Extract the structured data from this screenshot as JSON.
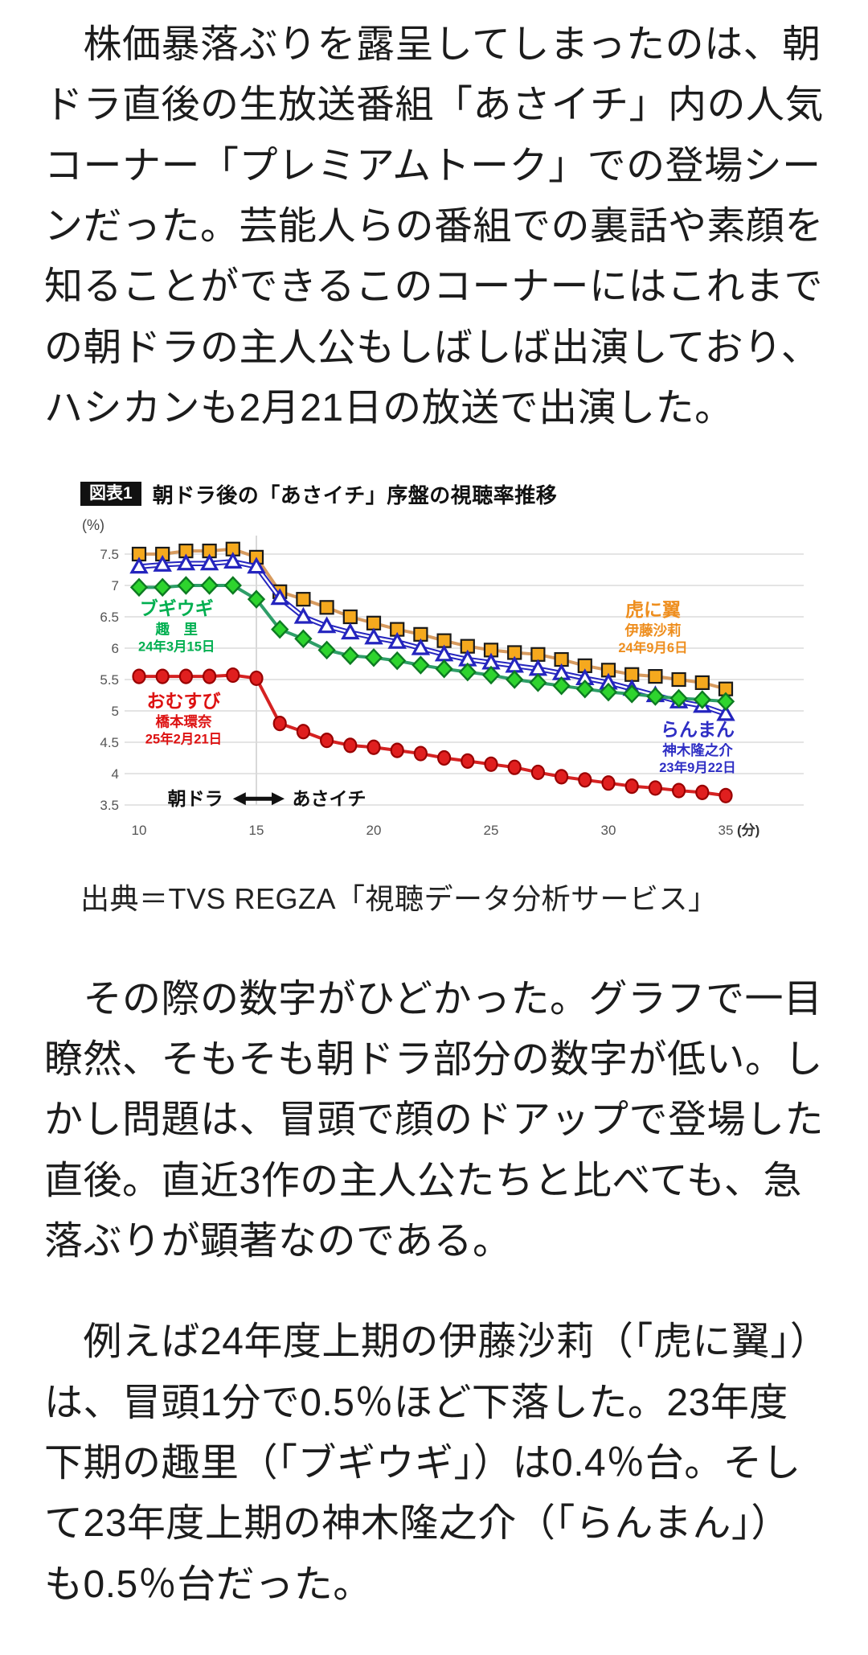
{
  "article": {
    "paragraph1": "　株価暴落ぶりを露呈してしまったのは、朝ドラ直後の生放送番組「あさイチ」内の人気コーナー「プレミアムトーク」での登場シーンだった。芸能人らの番組での裏話や素顔を知ることができるこのコーナーにはこれまでの朝ドラの主人公もしばしば出演しており、ハシカンも2月21日の放送で出演した。",
    "paragraph2": "　その際の数字がひどかった。グラフで一目瞭然、そもそも朝ドラ部分の数字が低い。しかし問題は、冒頭で顔のドアップで登場した直後。直近3作の主人公たちと比べても、急落ぶりが顕著なのである。",
    "paragraph3": "　例えば24年度上期の伊藤沙莉（「虎に翼」）は、冒頭1分で0.5％ほど下落した。23年度下期の趣里（「ブギウギ」）は0.4％台。そして23年度上期の神木隆之介（「らんまん」）も0.5％台だった。",
    "source": "出典＝TVS REGZA「視聴データ分析サービス」"
  },
  "chart": {
    "badge": "図表1",
    "title": "朝ドラ後の「あさイチ」序盤の視聴率推移",
    "unit_label": "(%)"
  },
  "chart_data": {
    "type": "line",
    "title": "朝ドラ後の「あさイチ」序盤の視聴率推移",
    "xlabel": "(分)",
    "ylabel": "(%)",
    "x": [
      10,
      11,
      12,
      13,
      14,
      15,
      16,
      17,
      18,
      19,
      20,
      21,
      22,
      23,
      24,
      25,
      26,
      27,
      28,
      29,
      30,
      31,
      32,
      33,
      34,
      35
    ],
    "xticks": [
      10,
      15,
      20,
      25,
      30,
      35
    ],
    "yticks": [
      7.5,
      7,
      6.5,
      6,
      5.5,
      5,
      4.5,
      4,
      3.5
    ],
    "xlim": [
      10,
      35
    ],
    "ylim": [
      3.5,
      7.5
    ],
    "grid": true,
    "boundary_x": 15,
    "grid_color": "#e4e4e4",
    "boundary_color": "#d9d9d9",
    "axis_text_color": "#555555",
    "series": [
      {
        "name": "虎に翼",
        "actor": "伊藤沙莉",
        "date": "24年9月6日",
        "marker": "square",
        "marker_fill": "#f5a91e",
        "marker_stroke": "#1a1a1a",
        "line_color": "#d79b5f",
        "label_color": "#ee8e1e",
        "label_x": 31.9,
        "label_y": 6.51,
        "values": [
          7.5,
          7.5,
          7.55,
          7.55,
          7.58,
          7.45,
          6.9,
          6.78,
          6.65,
          6.5,
          6.4,
          6.3,
          6.22,
          6.12,
          6.03,
          5.97,
          5.93,
          5.9,
          5.82,
          5.72,
          5.65,
          5.58,
          5.55,
          5.5,
          5.45,
          5.35
        ]
      },
      {
        "name": "らんまん",
        "actor": "神木隆之介",
        "date": "23年9月22日",
        "marker": "triangle",
        "marker_fill": "#ffffff",
        "marker_stroke": "#2424be",
        "line_color": "#2424be",
        "label_color": "#2e2ec4",
        "label_x": 33.8,
        "label_y": 4.6,
        "values": [
          7.3,
          7.33,
          7.35,
          7.35,
          7.38,
          7.3,
          6.8,
          6.5,
          6.35,
          6.25,
          6.17,
          6.1,
          6.0,
          5.9,
          5.82,
          5.77,
          5.72,
          5.67,
          5.6,
          5.52,
          5.45,
          5.35,
          5.25,
          5.15,
          5.08,
          4.95
        ]
      },
      {
        "name": "ブギウギ",
        "actor": "趣　里",
        "date": "24年3月15日",
        "marker": "diamond",
        "marker_fill": "#2ed42e",
        "marker_stroke": "#0d7a22",
        "line_color": "#2e9e68",
        "label_color": "#00af50",
        "label_x": 11.6,
        "label_y": 6.53,
        "values": [
          6.97,
          6.97,
          7.0,
          7.0,
          7.0,
          6.78,
          6.3,
          6.15,
          5.97,
          5.88,
          5.85,
          5.8,
          5.73,
          5.67,
          5.62,
          5.57,
          5.5,
          5.45,
          5.4,
          5.35,
          5.3,
          5.27,
          5.23,
          5.2,
          5.18,
          5.15
        ]
      },
      {
        "name": "おむすび",
        "actor": "橋本環奈",
        "date": "25年2月21日",
        "marker": "circle",
        "marker_fill": "#e01f1f",
        "marker_stroke": "#990000",
        "line_color": "#d52222",
        "label_color": "#dd1111",
        "label_x": 11.9,
        "label_y": 5.06,
        "values": [
          5.55,
          5.55,
          5.55,
          5.55,
          5.57,
          5.52,
          4.8,
          4.67,
          4.53,
          4.45,
          4.42,
          4.37,
          4.32,
          4.25,
          4.2,
          4.15,
          4.1,
          4.02,
          3.95,
          3.9,
          3.85,
          3.8,
          3.77,
          3.73,
          3.7,
          3.65
        ]
      }
    ],
    "annotation": {
      "left_label": "朝ドラ",
      "right_label": "あさイチ",
      "left_x": 12.4,
      "right_x": 18.1,
      "arrow_from": 14.0,
      "arrow_to": 16.2,
      "y": 3.6,
      "color": "#111111"
    }
  }
}
